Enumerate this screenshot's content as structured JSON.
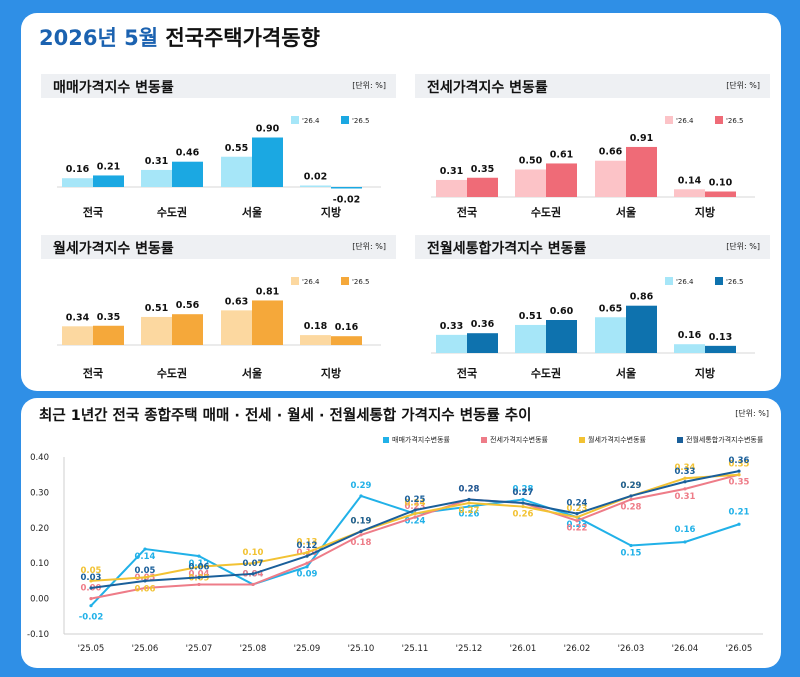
{
  "page": {
    "title_year": "2026년 5월",
    "title_rest": "전국주택가격동향"
  },
  "colors": {
    "bg": "#2f8fe6",
    "accent": "#1b62b0",
    "sale_light": "#a6e6f8",
    "sale_dark": "#1ba8e2",
    "jeonse_light": "#fcc3c7",
    "jeonse_dark": "#ef6b77",
    "monthly_light": "#fcd8a0",
    "monthly_dark": "#f5a83a",
    "combined_light": "#a6e6f8",
    "combined_dark": "#0e72ae",
    "line_sale": "#21b1e8",
    "line_jeonse": "#ee7c88",
    "line_monthly": "#f2c233",
    "line_combined": "#1a5f9a"
  },
  "chart_data": [
    {
      "type": "bar",
      "title": "매매가격지수 변동률",
      "unit": "[단위: %]",
      "categories": [
        "전국",
        "수도권",
        "서울",
        "지방"
      ],
      "series": [
        {
          "name": "'26.4",
          "values": [
            0.16,
            0.31,
            0.55,
            0.02
          ]
        },
        {
          "name": "'26.5",
          "values": [
            0.21,
            0.46,
            0.9,
            -0.02
          ]
        }
      ],
      "value_labels": [
        [
          "0.16",
          "0.31",
          "0.55",
          "0.02"
        ],
        [
          "0.21",
          "0.46",
          "0.90",
          "-0.02"
        ]
      ],
      "legend_position": "top-right"
    },
    {
      "type": "bar",
      "title": "전세가격지수 변동률",
      "unit": "[단위: %]",
      "categories": [
        "전국",
        "수도권",
        "서울",
        "지방"
      ],
      "series": [
        {
          "name": "'26.4",
          "values": [
            0.31,
            0.5,
            0.66,
            0.14
          ]
        },
        {
          "name": "'26.5",
          "values": [
            0.35,
            0.61,
            0.91,
            0.1
          ]
        }
      ],
      "value_labels": [
        [
          "0.31",
          "0.50",
          "0.66",
          "0.14"
        ],
        [
          "0.35",
          "0.61",
          "0.91",
          "0.10"
        ]
      ],
      "legend_position": "top-right"
    },
    {
      "type": "bar",
      "title": "월세가격지수 변동률",
      "unit": "[단위: %]",
      "categories": [
        "전국",
        "수도권",
        "서울",
        "지방"
      ],
      "series": [
        {
          "name": "'26.4",
          "values": [
            0.34,
            0.51,
            0.63,
            0.18
          ]
        },
        {
          "name": "'26.5",
          "values": [
            0.35,
            0.56,
            0.81,
            0.16
          ]
        }
      ],
      "value_labels": [
        [
          "0.34",
          "0.51",
          "0.63",
          "0.18"
        ],
        [
          "0.35",
          "0.56",
          "0.81",
          "0.16"
        ]
      ],
      "legend_position": "top-right"
    },
    {
      "type": "bar",
      "title": "전월세통합가격지수 변동률",
      "unit": "[단위: %]",
      "categories": [
        "전국",
        "수도권",
        "서울",
        "지방"
      ],
      "series": [
        {
          "name": "'26.4",
          "values": [
            0.33,
            0.51,
            0.65,
            0.16
          ]
        },
        {
          "name": "'26.5",
          "values": [
            0.36,
            0.6,
            0.86,
            0.13
          ]
        }
      ],
      "value_labels": [
        [
          "0.33",
          "0.51",
          "0.65",
          "0.16"
        ],
        [
          "0.36",
          "0.60",
          "0.86",
          "0.13"
        ]
      ],
      "legend_position": "top-right"
    },
    {
      "type": "line",
      "title": "최근 1년간 전국 종합주택 매매 · 전세 · 월세 · 전월세통합 가격지수 변동률 추이",
      "unit": "[단위: %]",
      "x": [
        "'25.05",
        "'25.06",
        "'25.07",
        "'25.08",
        "'25.09",
        "'25.10",
        "'25.11",
        "'25.12",
        "'26.01",
        "'26.02",
        "'26.03",
        "'26.04",
        "'26.05"
      ],
      "ylim": [
        -0.1,
        0.4
      ],
      "yticks": [
        "0.40",
        "0.30",
        "0.20",
        "0.10",
        "0.00",
        "-0.10"
      ],
      "grid": false,
      "legend_position": "top-right",
      "series": [
        {
          "name": "매매가격지수변동률",
          "values": [
            -0.02,
            0.14,
            0.12,
            0.04,
            0.09,
            0.29,
            0.24,
            0.26,
            0.28,
            0.23,
            0.15,
            0.16,
            0.21
          ]
        },
        {
          "name": "전세가격지수변동률",
          "values": [
            0.0,
            0.03,
            0.04,
            0.04,
            0.1,
            0.18,
            0.23,
            0.28,
            0.27,
            0.22,
            0.28,
            0.31,
            0.35
          ]
        },
        {
          "name": "월세가격지수변동률",
          "values": [
            0.05,
            0.06,
            0.09,
            0.1,
            0.13,
            0.19,
            0.24,
            0.27,
            0.26,
            0.23,
            0.29,
            0.34,
            0.35
          ]
        },
        {
          "name": "전월세통합가격지수변동률",
          "values": [
            0.03,
            0.05,
            0.06,
            0.07,
            0.12,
            0.19,
            0.25,
            0.28,
            0.27,
            0.24,
            0.29,
            0.33,
            0.36
          ]
        }
      ],
      "value_labels": [
        [
          "-0.02",
          "0.14",
          "0.12",
          "0.04",
          "0.09",
          "0.29",
          "0.24",
          "0.26",
          "0.28",
          "0.23",
          "0.15",
          "0.16",
          "0.21"
        ],
        [
          "0.00",
          "0.03",
          "0.04",
          "0.04",
          "0.10",
          "0.18",
          "0.23",
          "0.28",
          "0.27",
          "0.22",
          "0.28",
          "0.31",
          "0.35"
        ],
        [
          "0.05",
          "0.06",
          "0.09",
          "0.10",
          "0.13",
          "0.19",
          "0.24",
          "0.27",
          "0.26",
          "0.23",
          "0.29",
          "0.34",
          "0.35"
        ],
        [
          "0.03",
          "0.05",
          "0.06",
          "0.07",
          "0.12",
          "0.19",
          "0.25",
          "0.28",
          "0.27",
          "0.24",
          "0.29",
          "0.33",
          "0.36"
        ]
      ]
    }
  ]
}
